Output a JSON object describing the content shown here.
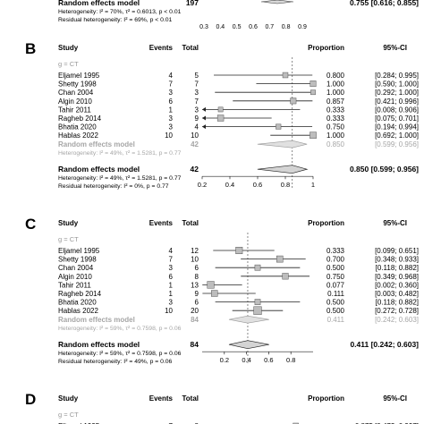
{
  "top_fragment": {
    "label": "Random effects model",
    "total": "197",
    "ci_text": "0.755 [0.616; 0.855]",
    "het1": "Heterogeneity: I² = 70%, τ² = 0.6013, p < 0.01",
    "het2": "Residual heterogeneity: I² = 69%, p < 0.01",
    "ticks": [
      "0.3",
      "0.4",
      "0.5",
      "0.6",
      "0.7",
      "0.8",
      "0.9"
    ]
  },
  "headers": {
    "study": "Study",
    "events": "Events",
    "total": "Total",
    "proportion": "Proportion",
    "ci": "95%-CI"
  },
  "chart_data": [
    {
      "type": "forest",
      "panel": "B",
      "subgroup": "g = CT",
      "xlim": [
        0.2,
        1.0
      ],
      "ticks": [
        "0.2",
        "0.4",
        "0.6",
        "0.8",
        "1"
      ],
      "studies": [
        {
          "study": "Eljamel 1995",
          "events": 4,
          "total": 5,
          "prop": 0.8,
          "lo": 0.284,
          "hi": 0.995,
          "ci_text": "0.800 [0.284; 0.995]"
        },
        {
          "study": "Shetty 1998",
          "events": 7,
          "total": 7,
          "prop": 1.0,
          "lo": 0.59,
          "hi": 1.0,
          "ci_text": "1.000 [0.590; 1.000]"
        },
        {
          "study": "Chan 2004",
          "events": 3,
          "total": 3,
          "prop": 1.0,
          "lo": 0.292,
          "hi": 1.0,
          "ci_text": "1.000 [0.292; 1.000]"
        },
        {
          "study": "Algin 2010",
          "events": 6,
          "total": 7,
          "prop": 0.857,
          "lo": 0.421,
          "hi": 0.996,
          "ci_text": "0.857 [0.421; 0.996]"
        },
        {
          "study": "Tahir 2011",
          "events": 1,
          "total": 3,
          "prop": 0.333,
          "lo": 0.008,
          "hi": 0.906,
          "ci_text": "0.333 [0.008; 0.906]"
        },
        {
          "study": "Ragheb 2014",
          "events": 3,
          "total": 9,
          "prop": 0.333,
          "lo": 0.075,
          "hi": 0.701,
          "ci_text": "0.333 [0.075; 0.701]"
        },
        {
          "study": "Bhatia 2020",
          "events": 3,
          "total": 4,
          "prop": 0.75,
          "lo": 0.194,
          "hi": 0.994,
          "ci_text": "0.750 [0.194; 0.994]"
        },
        {
          "study": "Hablas 2022",
          "events": 10,
          "total": 10,
          "prop": 1.0,
          "lo": 0.692,
          "hi": 1.0,
          "ci_text": "1.000 [0.692; 1.000]"
        }
      ],
      "subgroup_model": {
        "label": "Random effects model",
        "total": "42",
        "prop": 0.85,
        "lo": 0.599,
        "hi": 0.956,
        "ci_text": "0.850 [0.599; 0.956]",
        "het": "Heterogeneity: I² = 49%, τ² = 1.5281, p = 0.77"
      },
      "overall_model": {
        "label": "Random effects model",
        "total": "42",
        "prop": 0.85,
        "lo": 0.599,
        "hi": 0.956,
        "ci_text": "0.850 [0.599; 0.956]"
      },
      "het1": "Heterogeneity: I² = 49%, τ² = 1.5281, p = 0.77",
      "het2": "Residual heterogeneity: I² = 0%, p = 0.77"
    },
    {
      "type": "forest",
      "panel": "C",
      "subgroup": "g = CT",
      "xlim": [
        0.0,
        1.0
      ],
      "ticks": [
        "0.2",
        "0.4",
        "0.6",
        "0.8"
      ],
      "studies": [
        {
          "study": "Eljamel 1995",
          "events": 4,
          "total": 12,
          "prop": 0.333,
          "lo": 0.099,
          "hi": 0.651,
          "ci_text": "0.333 [0.099; 0.651]"
        },
        {
          "study": "Shetty 1998",
          "events": 7,
          "total": 10,
          "prop": 0.7,
          "lo": 0.348,
          "hi": 0.933,
          "ci_text": "0.700 [0.348; 0.933]"
        },
        {
          "study": "Chan 2004",
          "events": 3,
          "total": 6,
          "prop": 0.5,
          "lo": 0.118,
          "hi": 0.882,
          "ci_text": "0.500 [0.118; 0.882]"
        },
        {
          "study": "Algin 2010",
          "events": 6,
          "total": 8,
          "prop": 0.75,
          "lo": 0.349,
          "hi": 0.968,
          "ci_text": "0.750 [0.349; 0.968]"
        },
        {
          "study": "Tahir 2011",
          "events": 1,
          "total": 13,
          "prop": 0.077,
          "lo": 0.002,
          "hi": 0.36,
          "ci_text": "0.077 [0.002; 0.360]"
        },
        {
          "study": "Ragheb 2014",
          "events": 1,
          "total": 9,
          "prop": 0.111,
          "lo": 0.003,
          "hi": 0.482,
          "ci_text": "0.111 [0.003; 0.482]"
        },
        {
          "study": "Bhatia 2020",
          "events": 3,
          "total": 6,
          "prop": 0.5,
          "lo": 0.118,
          "hi": 0.882,
          "ci_text": "0.500 [0.118; 0.882]"
        },
        {
          "study": "Hablas 2022",
          "events": 10,
          "total": 20,
          "prop": 0.5,
          "lo": 0.272,
          "hi": 0.728,
          "ci_text": "0.500 [0.272; 0.728]"
        }
      ],
      "subgroup_model": {
        "label": "Random effects model",
        "total": "84",
        "prop": 0.411,
        "lo": 0.242,
        "hi": 0.603,
        "ci_text": "0.411 [0.242; 0.603]",
        "het": "Heterogeneity: I² = 59%, τ² = 0.7598, p = 0.06"
      },
      "overall_model": {
        "label": "Random effects model",
        "total": "84",
        "prop": 0.411,
        "lo": 0.242,
        "hi": 0.603,
        "ci_text": "0.411 [0.242; 0.603]"
      },
      "het1": "Heterogeneity: I² = 59%, τ² = 0.7598, p = 0.06",
      "het2": "Residual heterogeneity: I² = 49%, p = 0.06"
    },
    {
      "type": "forest",
      "panel": "D",
      "subgroup": "g = CT",
      "studies": [
        {
          "study": "Eljamel 1995",
          "events": 7,
          "total": 8,
          "prop": 0.875,
          "ci_text": "0.875 [0.473; 0.997]"
        }
      ]
    }
  ]
}
